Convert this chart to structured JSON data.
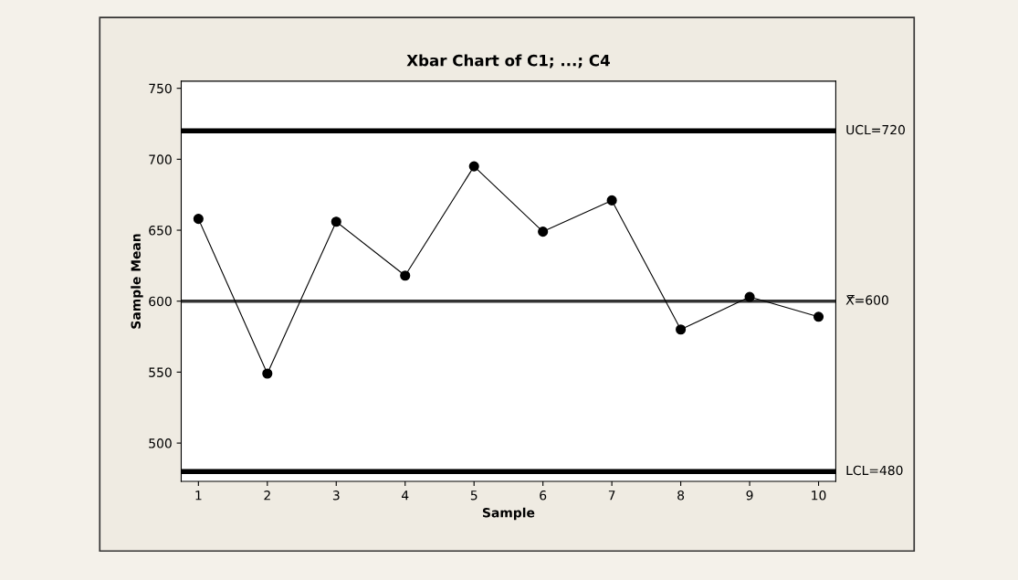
{
  "chart_data": {
    "type": "line",
    "title": "Xbar Chart of C1; ...; C4",
    "xlabel": "Sample",
    "ylabel": "Sample Mean",
    "x": [
      1,
      2,
      3,
      4,
      5,
      6,
      7,
      8,
      9,
      10
    ],
    "series": [
      {
        "color": "#000000",
        "values": [
          658,
          549,
          656,
          618,
          695,
          649,
          671,
          580,
          603,
          589
        ]
      }
    ],
    "xlim": [
      0.75,
      10.25
    ],
    "xticks": [
      1,
      2,
      3,
      4,
      5,
      6,
      7,
      8,
      9,
      10
    ],
    "ylim": [
      473,
      755
    ],
    "yticks": [
      500,
      550,
      600,
      650,
      700,
      750
    ],
    "ref_lines": [
      {
        "axis": "y",
        "value": 720,
        "label": "UCL=720",
        "color": "#000000",
        "line_style": "solid"
      },
      {
        "axis": "y",
        "value": 600,
        "label": "X̿=600",
        "color": "#333333",
        "line_style": "solid"
      },
      {
        "axis": "y",
        "value": 480,
        "label": "LCL=480",
        "color": "#000000",
        "line_style": "solid"
      }
    ],
    "marker": "circle",
    "line_style": "solid",
    "grid": false
  }
}
